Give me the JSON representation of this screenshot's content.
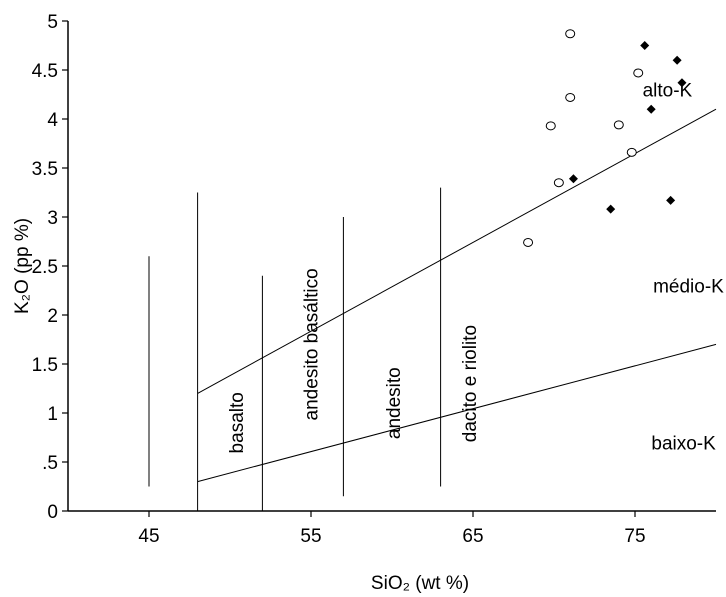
{
  "chart_data": {
    "type": "scatter",
    "xlabel": "SiO₂  (wt %)",
    "ylabel": "K₂O  (pp %)",
    "xlim": [
      40,
      80
    ],
    "ylim": [
      0,
      5
    ],
    "xticks": [
      {
        "value": 45,
        "label": "45"
      },
      {
        "value": 55,
        "label": "55"
      },
      {
        "value": 65,
        "label": "65"
      },
      {
        "value": 75,
        "label": "75"
      }
    ],
    "yticks": [
      {
        "value": 0,
        "label": "0"
      },
      {
        "value": 0.5,
        "label": ".5"
      },
      {
        "value": 1,
        "label": "1"
      },
      {
        "value": 1.5,
        "label": "1.5"
      },
      {
        "value": 2,
        "label": "2"
      },
      {
        "value": 2.5,
        "label": "2.5"
      },
      {
        "value": 3,
        "label": "3"
      },
      {
        "value": 3.5,
        "label": "3.5"
      },
      {
        "value": 4,
        "label": "4"
      },
      {
        "value": 4.5,
        "label": "4.5"
      },
      {
        "value": 5,
        "label": "5"
      }
    ],
    "boundary_lines": [
      {
        "points": [
          [
            48,
            1.2
          ],
          [
            80,
            4.1
          ]
        ]
      },
      {
        "points": [
          [
            48,
            0.3
          ],
          [
            80,
            1.7
          ]
        ]
      }
    ],
    "vertical_dividers": [
      {
        "x": 45,
        "y0": 0.25,
        "y1": 2.6
      },
      {
        "x": 48,
        "y0": 0,
        "y1": 3.25
      },
      {
        "x": 52,
        "y0": 0,
        "y1": 2.4
      },
      {
        "x": 57,
        "y0": 0.15,
        "y1": 3.0
      },
      {
        "x": 63,
        "y0": 0.25,
        "y1": 3.3
      }
    ],
    "series": [
      {
        "marker": "open-circle",
        "color": "#000000",
        "points": [
          [
            71.0,
            4.87
          ],
          [
            75.2,
            4.47
          ],
          [
            71.0,
            4.22
          ],
          [
            69.8,
            3.93
          ],
          [
            74.0,
            3.94
          ],
          [
            70.3,
            3.35
          ],
          [
            74.8,
            3.66
          ],
          [
            68.4,
            2.74
          ]
        ]
      },
      {
        "marker": "filled-diamond",
        "color": "#000000",
        "points": [
          [
            75.6,
            4.75
          ],
          [
            77.6,
            4.6
          ],
          [
            77.9,
            4.37
          ],
          [
            76.0,
            4.1
          ],
          [
            71.2,
            3.39
          ],
          [
            73.5,
            3.08
          ],
          [
            77.2,
            3.17
          ]
        ]
      }
    ],
    "region_labels": [
      {
        "text": "alto-K",
        "x": 77.0,
        "y": 4.3
      },
      {
        "text": "médio-K",
        "x": 78.3,
        "y": 2.3
      },
      {
        "text": "baixo-K",
        "x": 78.0,
        "y": 0.7
      }
    ],
    "rock_labels": [
      {
        "text": "basalto",
        "x": 50.8,
        "y": 0.9
      },
      {
        "text": "andesito basáltico",
        "x": 55.4,
        "y": 1.7
      },
      {
        "text": "andesito",
        "x": 60.5,
        "y": 1.1
      },
      {
        "text": "dacito e riolito",
        "x": 65.2,
        "y": 1.3
      }
    ]
  }
}
